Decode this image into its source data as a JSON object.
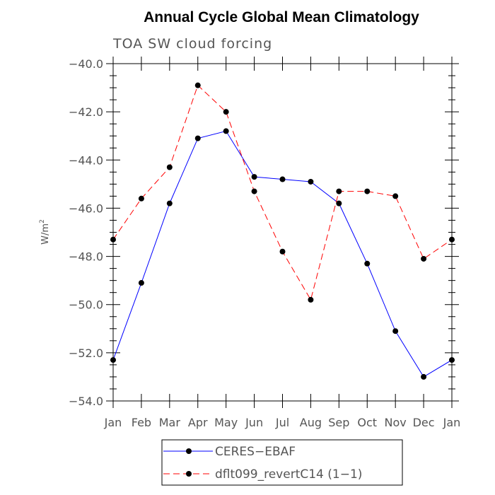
{
  "chart_data": {
    "type": "line",
    "title": "Annual Cycle Global Mean Climatology",
    "subtitle": "TOA SW cloud forcing",
    "ylabel": "W/m",
    "ylabel_superscript": "2",
    "ylim": [
      -54,
      -40
    ],
    "yticks": [
      "−40.0",
      "−42.0",
      "−44.0",
      "−46.0",
      "−48.0",
      "−50.0",
      "−52.0",
      "−54.0"
    ],
    "ytick_values": [
      -40,
      -42,
      -44,
      -46,
      -48,
      -50,
      -52,
      -54
    ],
    "categories": [
      "Jan",
      "Feb",
      "Mar",
      "Apr",
      "May",
      "Jun",
      "Jul",
      "Aug",
      "Sep",
      "Oct",
      "Nov",
      "Dec",
      "Jan"
    ],
    "grid": false,
    "legend_position": "bottom",
    "series": [
      {
        "name": "CERES−EBAF",
        "color": "#0000ff",
        "dash": "solid",
        "values": [
          -52.3,
          -49.1,
          -45.8,
          -43.1,
          -42.8,
          -44.7,
          -44.8,
          -44.9,
          -45.8,
          -48.3,
          -51.1,
          -53.0,
          -52.3
        ]
      },
      {
        "name": "dflt099_revertC14 (1−1)",
        "color": "#ff0000",
        "dash": "dashed",
        "values": [
          -47.3,
          -45.6,
          -44.3,
          -40.9,
          -42.0,
          -45.3,
          -47.8,
          -49.8,
          -45.3,
          -45.3,
          -45.5,
          -48.1,
          -47.3
        ]
      }
    ]
  }
}
